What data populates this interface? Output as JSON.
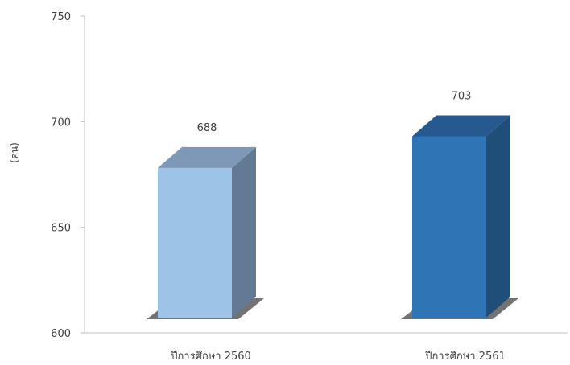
{
  "chart_data": {
    "type": "bar",
    "title": "",
    "xlabel": "",
    "ylabel": "(คน)",
    "categories": [
      "ปีการศึกษา 2560",
      "ปีการศึกษา 2561"
    ],
    "values": [
      688,
      703
    ],
    "ylim": [
      600,
      750
    ],
    "yticks": [
      600,
      650,
      700,
      750
    ],
    "grid": false,
    "legend": "none",
    "colors": {
      "bar_1_front": "#9dc3e6",
      "bar_1_side": "#637a94",
      "bar_1_top": "#7f98b8",
      "bar_2_front": "#2e75b6",
      "bar_2_side": "#1f4e79",
      "bar_2_top": "#25598f"
    }
  }
}
